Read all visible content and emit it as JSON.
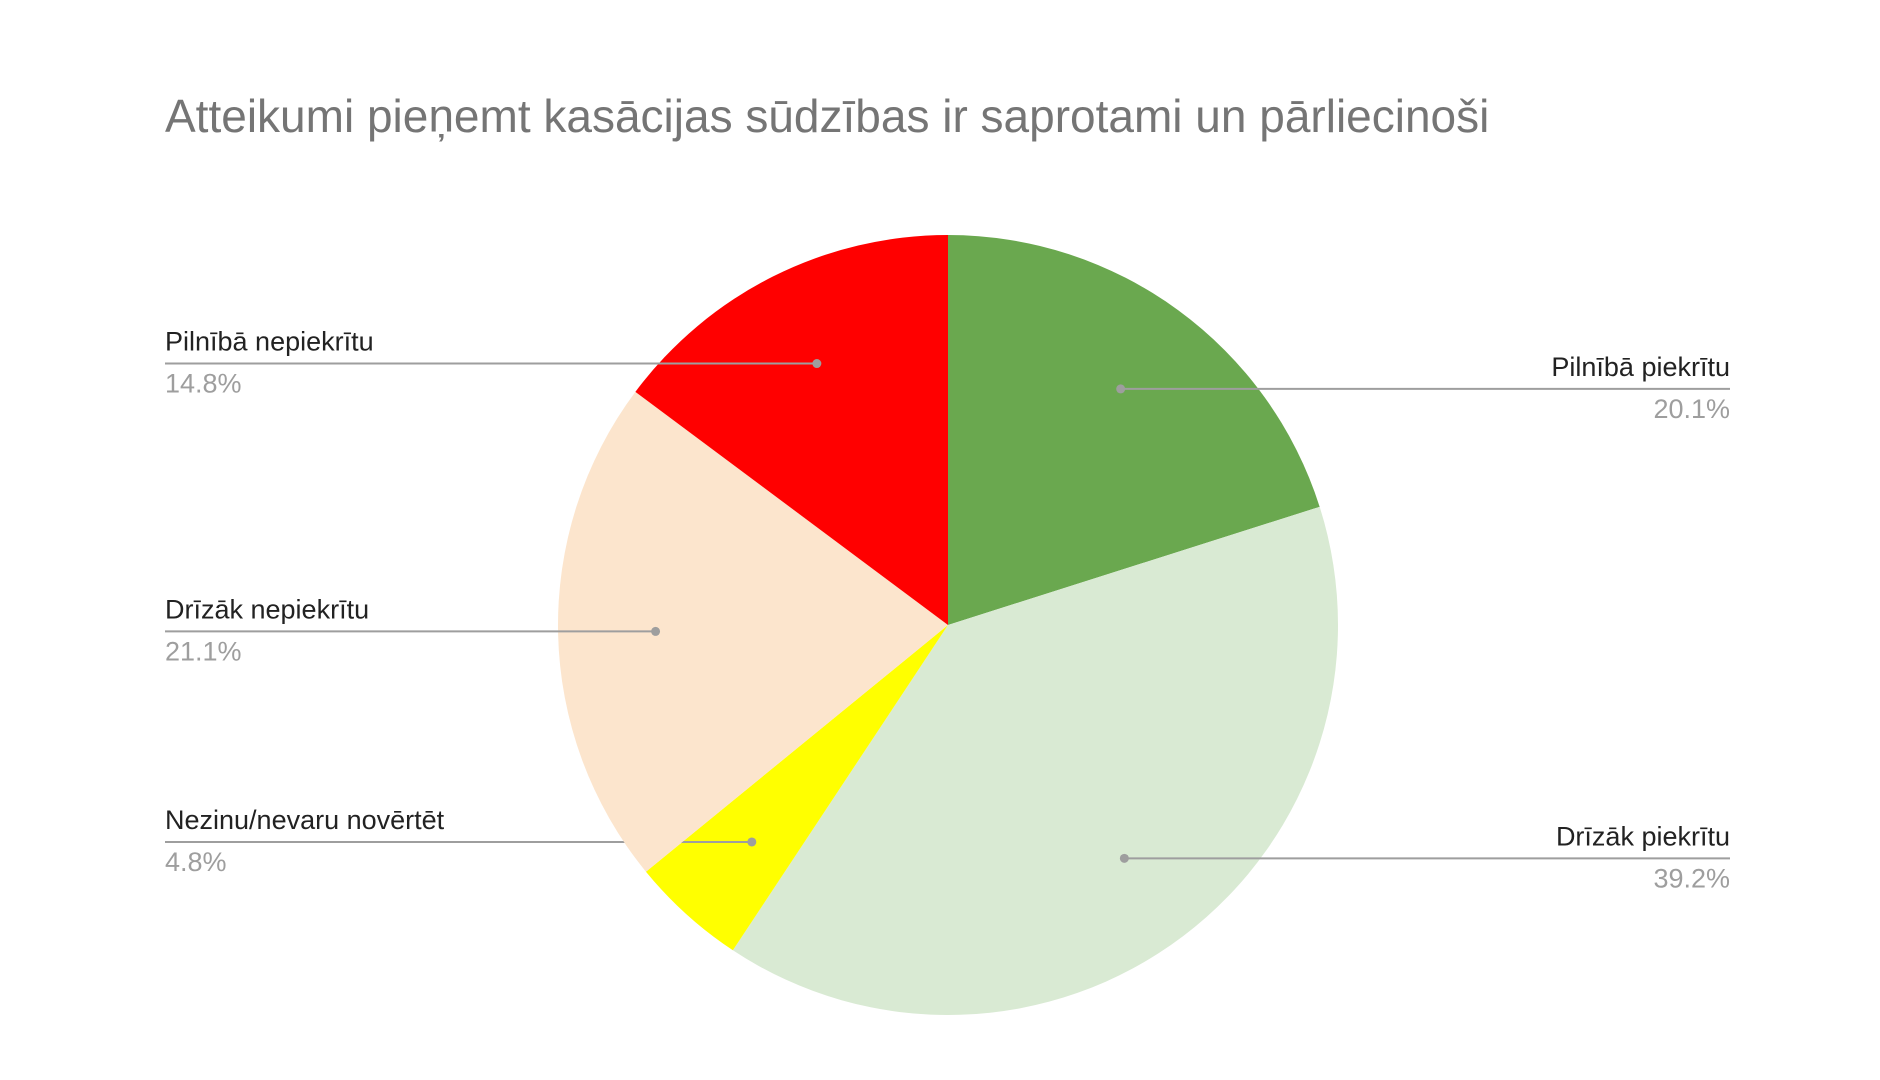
{
  "chart_data": {
    "type": "pie",
    "title": "Atteikumi pieņemt kasācijas sūdzības ir saprotami un pārliecinoši",
    "categories": [
      "Pilnībā piekrītu",
      "Drīzāk piekrītu",
      "Nezinu/nevaru novērtēt",
      "Drīzāk nepiekrītu",
      "Pilnībā nepiekrītu"
    ],
    "values": [
      20.1,
      39.2,
      4.8,
      21.1,
      14.8
    ],
    "value_labels": [
      "20.1%",
      "39.2%",
      "4.8%",
      "21.1%",
      "14.8%"
    ],
    "colors": [
      "#6aa84f",
      "#d9ead3",
      "#ffff00",
      "#fce5cd",
      "#ff0000"
    ]
  }
}
